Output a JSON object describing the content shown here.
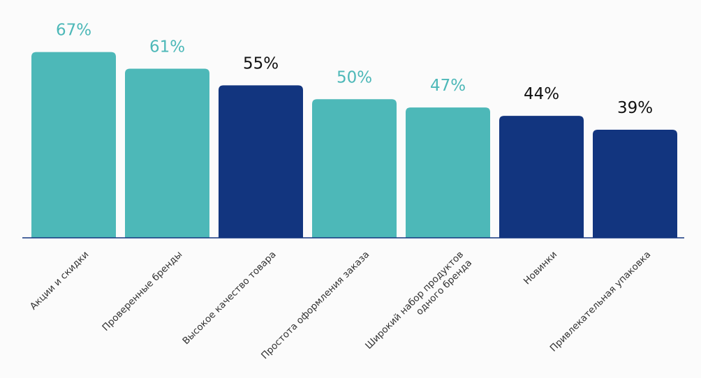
{
  "chart_data": {
    "type": "bar",
    "categories": [
      "Акции и скидки",
      "Проверенные бренды",
      "Высокое качество товара",
      "Простота оформления заказа",
      "Широкий набор продуктов\nодного бренда",
      "Новинки",
      "Привлекательная упаковка"
    ],
    "values": [
      67,
      61,
      55,
      50,
      47,
      44,
      39
    ],
    "value_labels": [
      "67%",
      "61%",
      "55%",
      "50%",
      "47%",
      "44%",
      "39%"
    ],
    "colors": [
      "#4db8b8",
      "#4db8b8",
      "#12357f",
      "#4db8b8",
      "#4db8b8",
      "#12357f",
      "#12357f"
    ],
    "value_label_colors": [
      "#4db8b8",
      "#4db8b8",
      "#111111",
      "#4db8b8",
      "#4db8b8",
      "#111111",
      "#111111"
    ],
    "ylim": [
      0,
      80
    ]
  }
}
